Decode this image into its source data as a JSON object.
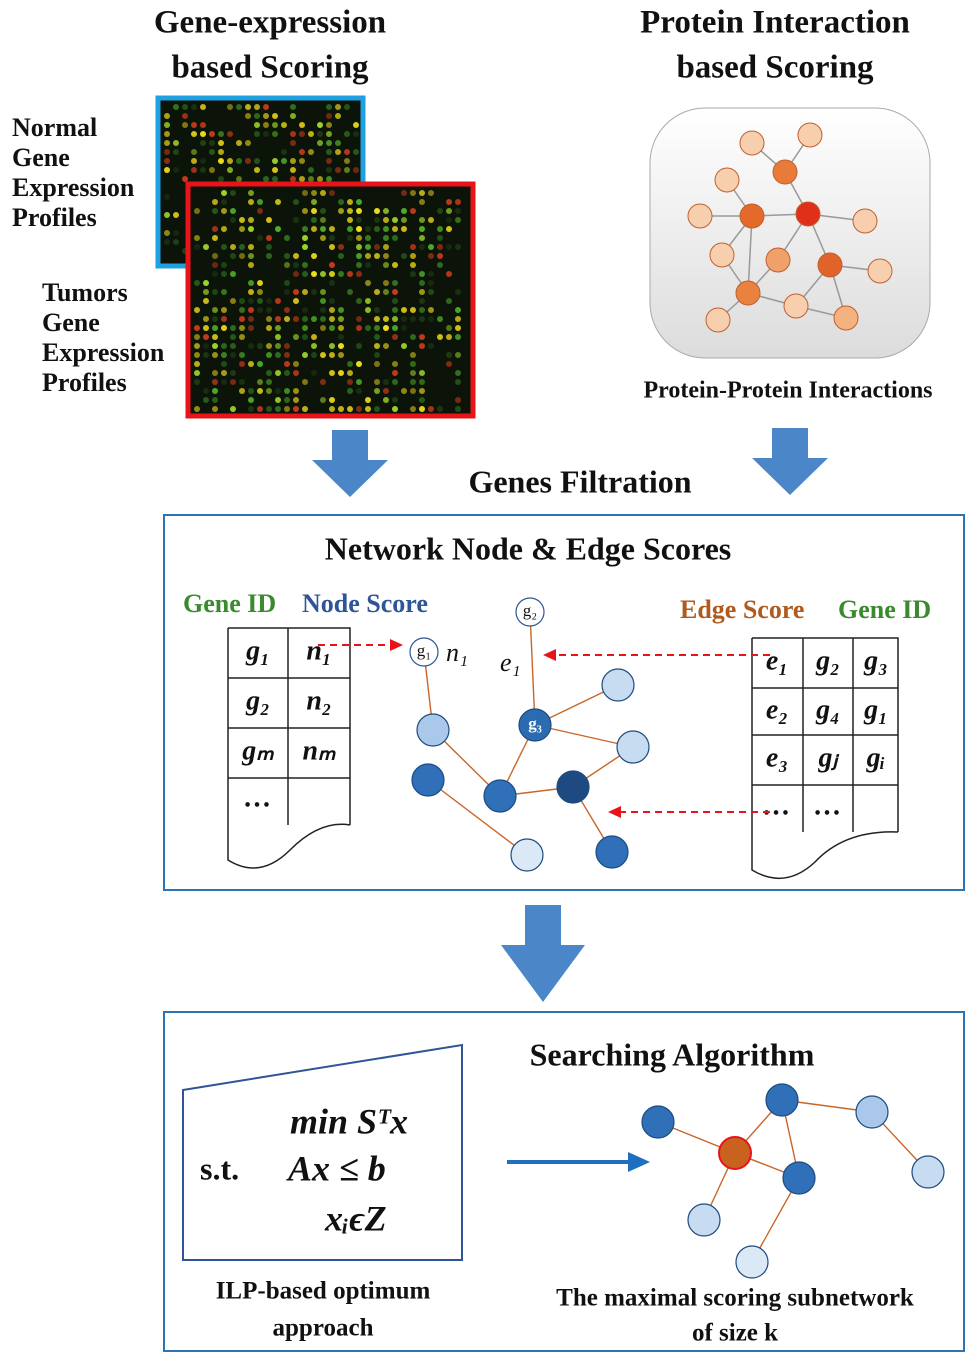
{
  "gene_expression": {
    "title": [
      "Gene-expression",
      "based Scoring"
    ],
    "normal_label": [
      "Normal",
      "Gene",
      "Expression",
      "Profiles"
    ],
    "tumor_label": [
      "Tumors",
      "Gene",
      "Expression",
      "Profiles"
    ]
  },
  "protein_interaction": {
    "title": [
      "Protein Interaction",
      "based Scoring"
    ],
    "caption": "Protein-Protein Interactions"
  },
  "filtration": "Genes Filtration",
  "scores": {
    "title": "Network Node & Edge Scores",
    "node_table": {
      "headers": [
        "Gene ID",
        "Node Score"
      ],
      "rows": [
        [
          "g₁",
          "n₁"
        ],
        [
          "g₂",
          "n₂"
        ],
        [
          "gₘ",
          "nₘ"
        ],
        [
          "…"
        ]
      ]
    },
    "edge_table": {
      "headers": [
        "Edge Score",
        "Gene ID"
      ],
      "rows": [
        [
          "e₁",
          "g₂",
          "g₃"
        ],
        [
          "e₂",
          "g₄",
          "g₁"
        ],
        [
          "e₃",
          "gⱼ",
          "gᵢ"
        ],
        [
          "…",
          "…"
        ]
      ]
    },
    "graph_labels": {
      "g2": "g₂",
      "g1": "g₁",
      "n1": "n₁",
      "e1": "e₁",
      "g3": "g₃"
    }
  },
  "search": {
    "title": "Searching Algorithm",
    "formula": {
      "objective": "min Sᵀx",
      "st": "s.t.",
      "constraint": "Ax ≤ b",
      "domain": "xᵢϵZ"
    },
    "ilp_caption": [
      "ILP-based optimum",
      "approach"
    ],
    "subnetwork_caption": [
      "The maximal scoring subnetwork",
      "of size k"
    ]
  }
}
